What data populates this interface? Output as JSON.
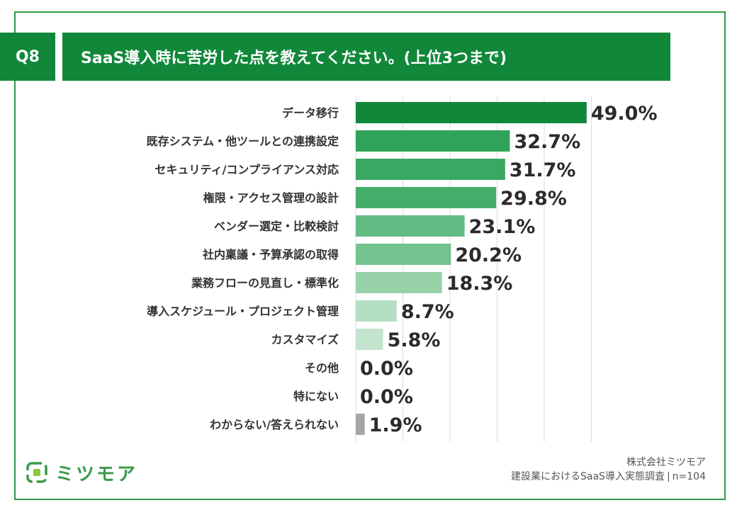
{
  "header": {
    "question_number": "Q8",
    "title": "SaaS導入時に苦労した点を教えてください。(上位3つまで)"
  },
  "chart_data": {
    "type": "bar",
    "orientation": "horizontal",
    "title": "SaaS導入時に苦労した点を教えてください。(上位3つまで)",
    "categories": [
      "データ移行",
      "既存システム・他ツールとの連携設定",
      "セキュリティ/コンプライアンス対応",
      "権限・アクセス管理の設計",
      "ベンダー選定・比較検討",
      "社内稟議・予算承認の取得",
      "業務フローの見直し・標準化",
      "導入スケジュール・プロジェクト管理",
      "カスタマイズ",
      "その他",
      "特にない",
      "わからない/答えられない"
    ],
    "values": [
      49.0,
      32.7,
      31.7,
      29.8,
      23.1,
      20.2,
      18.3,
      8.7,
      5.8,
      0.0,
      0.0,
      1.9
    ],
    "value_labels": [
      "49.0%",
      "32.7%",
      "31.7%",
      "29.8%",
      "23.1%",
      "20.2%",
      "18.3%",
      "8.7%",
      "5.8%",
      "0.0%",
      "0.0%",
      "1.9%"
    ],
    "unit": "%",
    "xlim": [
      0,
      50
    ],
    "grid": "vertical",
    "bar_colors": [
      "#11873a",
      "#2fa35a",
      "#39a862",
      "#45ad6a",
      "#63bb84",
      "#73c290",
      "#98d2ab",
      "#b5dfc3",
      "#c3e5cf",
      "#c3e5cf",
      "#c3e5cf",
      "#a6a6a6"
    ]
  },
  "footer": {
    "company": "株式会社ミツモア",
    "survey": "建設業におけるSaaS導入実態調査",
    "sample": "n=104"
  },
  "logo": {
    "text": "ミツモア",
    "icon": "mitsumore-logo-icon",
    "color": "#3a9a4a"
  }
}
